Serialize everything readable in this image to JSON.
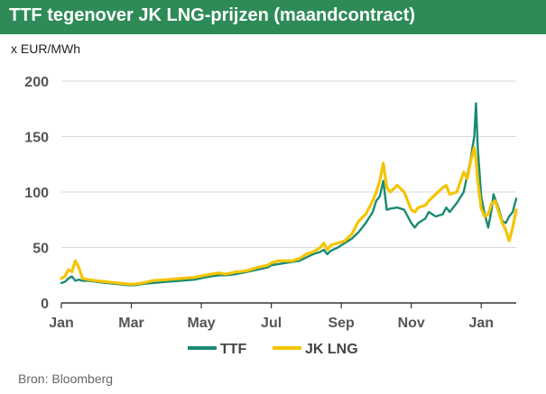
{
  "title": "TTF tegenover JK LNG-prijzen (maandcontract)",
  "unit_label": "x EUR/MWh",
  "source": "Bron: Bloomberg",
  "colors": {
    "title_bg": "#2e8b57",
    "ttf": "#1a8a73",
    "jk_lng": "#f5c400"
  },
  "chart_data": {
    "type": "line",
    "title": "TTF tegenover JK LNG-prijzen (maandcontract)",
    "ylabel": "x EUR/MWh",
    "xlabel": "",
    "ylim": [
      0,
      200
    ],
    "yticks": [
      0,
      50,
      100,
      150,
      200
    ],
    "xlim": [
      0,
      13.0
    ],
    "xtick_labels": [
      {
        "label": "Jan",
        "x": 0
      },
      {
        "label": "Mar",
        "x": 2
      },
      {
        "label": "May",
        "x": 4
      },
      {
        "label": "Jul",
        "x": 6
      },
      {
        "label": "Sep",
        "x": 8
      },
      {
        "label": "Nov",
        "x": 10
      },
      {
        "label": "Jan",
        "x": 12
      }
    ],
    "grid": "horizontal",
    "legend": "bottom",
    "series": [
      {
        "name": "TTF",
        "color": "#1a8a73",
        "points": [
          [
            0.0,
            18
          ],
          [
            0.1,
            19
          ],
          [
            0.2,
            22
          ],
          [
            0.3,
            24
          ],
          [
            0.4,
            20
          ],
          [
            0.5,
            21
          ],
          [
            0.6,
            20
          ],
          [
            0.8,
            20
          ],
          [
            1.0,
            19
          ],
          [
            1.3,
            18
          ],
          [
            1.6,
            17
          ],
          [
            1.9,
            16
          ],
          [
            2.1,
            16
          ],
          [
            2.3,
            17
          ],
          [
            2.6,
            18
          ],
          [
            3.0,
            19
          ],
          [
            3.4,
            20
          ],
          [
            3.8,
            21
          ],
          [
            4.1,
            23
          ],
          [
            4.3,
            24
          ],
          [
            4.5,
            25
          ],
          [
            4.7,
            25
          ],
          [
            5.0,
            26
          ],
          [
            5.3,
            28
          ],
          [
            5.6,
            30
          ],
          [
            5.9,
            32
          ],
          [
            6.0,
            34
          ],
          [
            6.2,
            35
          ],
          [
            6.4,
            36
          ],
          [
            6.6,
            37
          ],
          [
            6.8,
            38
          ],
          [
            7.0,
            41
          ],
          [
            7.2,
            44
          ],
          [
            7.4,
            46
          ],
          [
            7.5,
            48
          ],
          [
            7.6,
            44
          ],
          [
            7.7,
            47
          ],
          [
            7.9,
            50
          ],
          [
            8.1,
            54
          ],
          [
            8.3,
            58
          ],
          [
            8.5,
            64
          ],
          [
            8.7,
            72
          ],
          [
            8.9,
            82
          ],
          [
            9.0,
            92
          ],
          [
            9.1,
            96
          ],
          [
            9.2,
            110
          ],
          [
            9.3,
            84
          ],
          [
            9.4,
            85
          ],
          [
            9.6,
            86
          ],
          [
            9.8,
            84
          ],
          [
            10.0,
            72
          ],
          [
            10.1,
            68
          ],
          [
            10.2,
            72
          ],
          [
            10.4,
            76
          ],
          [
            10.5,
            82
          ],
          [
            10.7,
            78
          ],
          [
            10.9,
            80
          ],
          [
            11.0,
            86
          ],
          [
            11.1,
            82
          ],
          [
            11.3,
            90
          ],
          [
            11.5,
            100
          ],
          [
            11.7,
            130
          ],
          [
            11.8,
            150
          ],
          [
            11.85,
            180
          ],
          [
            11.9,
            140
          ],
          [
            12.0,
            96
          ],
          [
            12.1,
            80
          ],
          [
            12.2,
            68
          ],
          [
            12.3,
            85
          ],
          [
            12.35,
            98
          ],
          [
            12.5,
            85
          ],
          [
            12.6,
            74
          ],
          [
            12.7,
            72
          ],
          [
            12.8,
            78
          ],
          [
            12.9,
            82
          ],
          [
            13.0,
            94
          ]
        ]
      },
      {
        "name": "JK LNG",
        "color": "#f5c400",
        "points": [
          [
            0.0,
            22
          ],
          [
            0.1,
            24
          ],
          [
            0.2,
            30
          ],
          [
            0.3,
            28
          ],
          [
            0.4,
            38
          ],
          [
            0.5,
            32
          ],
          [
            0.6,
            22
          ],
          [
            0.8,
            21
          ],
          [
            1.0,
            20
          ],
          [
            1.3,
            19
          ],
          [
            1.6,
            18
          ],
          [
            1.9,
            17
          ],
          [
            2.1,
            17
          ],
          [
            2.3,
            18
          ],
          [
            2.6,
            20
          ],
          [
            3.0,
            21
          ],
          [
            3.4,
            22
          ],
          [
            3.8,
            23
          ],
          [
            4.1,
            25
          ],
          [
            4.3,
            26
          ],
          [
            4.5,
            27
          ],
          [
            4.7,
            26
          ],
          [
            5.0,
            28
          ],
          [
            5.3,
            29
          ],
          [
            5.6,
            32
          ],
          [
            5.9,
            34
          ],
          [
            6.0,
            36
          ],
          [
            6.2,
            38
          ],
          [
            6.4,
            38
          ],
          [
            6.6,
            38
          ],
          [
            6.8,
            40
          ],
          [
            7.0,
            44
          ],
          [
            7.2,
            46
          ],
          [
            7.4,
            50
          ],
          [
            7.5,
            54
          ],
          [
            7.6,
            48
          ],
          [
            7.7,
            52
          ],
          [
            7.9,
            54
          ],
          [
            8.1,
            56
          ],
          [
            8.3,
            62
          ],
          [
            8.5,
            74
          ],
          [
            8.7,
            80
          ],
          [
            8.9,
            92
          ],
          [
            9.0,
            100
          ],
          [
            9.1,
            110
          ],
          [
            9.2,
            126
          ],
          [
            9.3,
            104
          ],
          [
            9.4,
            100
          ],
          [
            9.6,
            106
          ],
          [
            9.8,
            100
          ],
          [
            10.0,
            84
          ],
          [
            10.1,
            82
          ],
          [
            10.2,
            86
          ],
          [
            10.4,
            88
          ],
          [
            10.5,
            92
          ],
          [
            10.7,
            98
          ],
          [
            10.9,
            104
          ],
          [
            11.0,
            106
          ],
          [
            11.1,
            98
          ],
          [
            11.3,
            100
          ],
          [
            11.5,
            118
          ],
          [
            11.6,
            112
          ],
          [
            11.7,
            128
          ],
          [
            11.8,
            140
          ],
          [
            11.85,
            130
          ],
          [
            11.9,
            110
          ],
          [
            12.0,
            85
          ],
          [
            12.1,
            78
          ],
          [
            12.2,
            80
          ],
          [
            12.3,
            90
          ],
          [
            12.4,
            92
          ],
          [
            12.5,
            82
          ],
          [
            12.6,
            72
          ],
          [
            12.7,
            66
          ],
          [
            12.8,
            56
          ],
          [
            12.9,
            68
          ],
          [
            13.0,
            84
          ]
        ]
      }
    ]
  }
}
